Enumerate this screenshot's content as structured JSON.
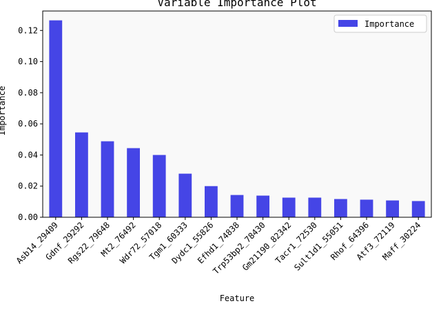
{
  "chart_data": {
    "type": "bar",
    "title": "Variable Importance Plot",
    "xlabel": "Feature",
    "ylabel": "Importance",
    "categories": [
      "Asb14_29409",
      "Gdnf_29292",
      "Rgs22_79648",
      "Mt2_76492",
      "Wdr72_57018",
      "Tgm1_60333",
      "Dydc1_55826",
      "Efhd1_74838",
      "Trp53bp2_78430",
      "Gm21190_82342",
      "Tacr1_72530",
      "Sult1d1_55051",
      "Rhof_64396",
      "Atf3_72119",
      "Maff_30224"
    ],
    "series": [
      {
        "name": "Importance",
        "values": [
          0.1265,
          0.0545,
          0.0488,
          0.0444,
          0.04,
          0.028,
          0.02,
          0.0143,
          0.0139,
          0.0126,
          0.0126,
          0.0117,
          0.0113,
          0.0108,
          0.0104
        ]
      }
    ],
    "ylim": [
      0,
      0.1325
    ],
    "yticks": [
      "0.00",
      "0.02",
      "0.04",
      "0.06",
      "0.08",
      "0.10",
      "0.12"
    ],
    "ytick_values": [
      0,
      0.02,
      0.04,
      0.06,
      0.08,
      0.1,
      0.12
    ],
    "bar_color": "#4545e6",
    "plot_background": "#f9f9f9",
    "legend_placement": "top-right",
    "grid": false
  }
}
